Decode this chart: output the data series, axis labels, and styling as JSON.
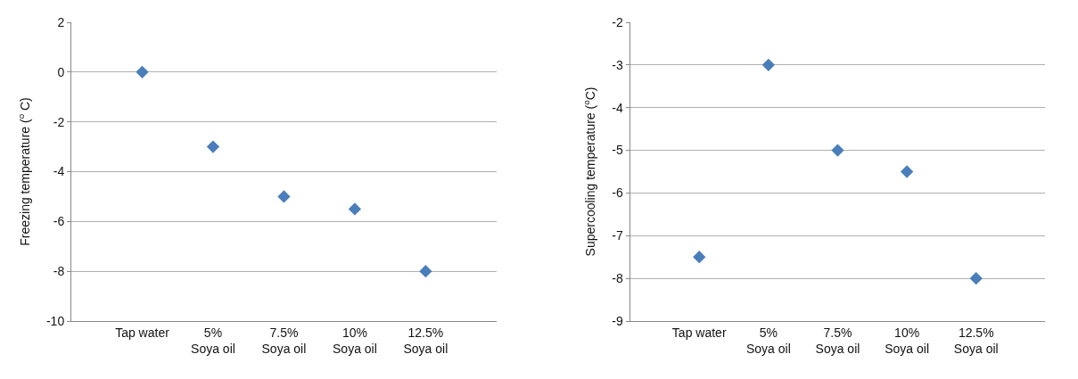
{
  "chart_data": [
    {
      "type": "scatter",
      "ylabel": "Freezing temperature ($^{o}$ C)",
      "categories": [
        "Tap water",
        "5%\nSoya oil",
        "7.5%\nSoya oil",
        "10%\nSoya oil",
        "12.5%\nSoya oil"
      ],
      "series": [
        {
          "color": "#4a7ebb",
          "values": [
            0,
            -3,
            -5,
            -5.5,
            -8
          ]
        }
      ],
      "ylim": [
        -10,
        2
      ],
      "yticks": [
        -10,
        -8,
        -6,
        -4,
        -2,
        0,
        2
      ],
      "grid": "y",
      "marker": "diamond"
    },
    {
      "type": "scatter",
      "ylabel": "Supercooling temperature ($^{o}$C)",
      "categories": [
        "Tap water",
        "5%\nSoya oil",
        "7.5%\nSoya oil",
        "10%\nSoya oil",
        "12.5%\nSoya oil"
      ],
      "series": [
        {
          "color": "#4a7ebb",
          "values": [
            -7.5,
            -3,
            -5,
            -5.5,
            -8
          ]
        }
      ],
      "ylim": [
        -9,
        -2
      ],
      "yticks": [
        -9,
        -8,
        -7,
        -6,
        -5,
        -4,
        -3,
        -2
      ],
      "grid": "y",
      "marker": "diamond"
    }
  ]
}
